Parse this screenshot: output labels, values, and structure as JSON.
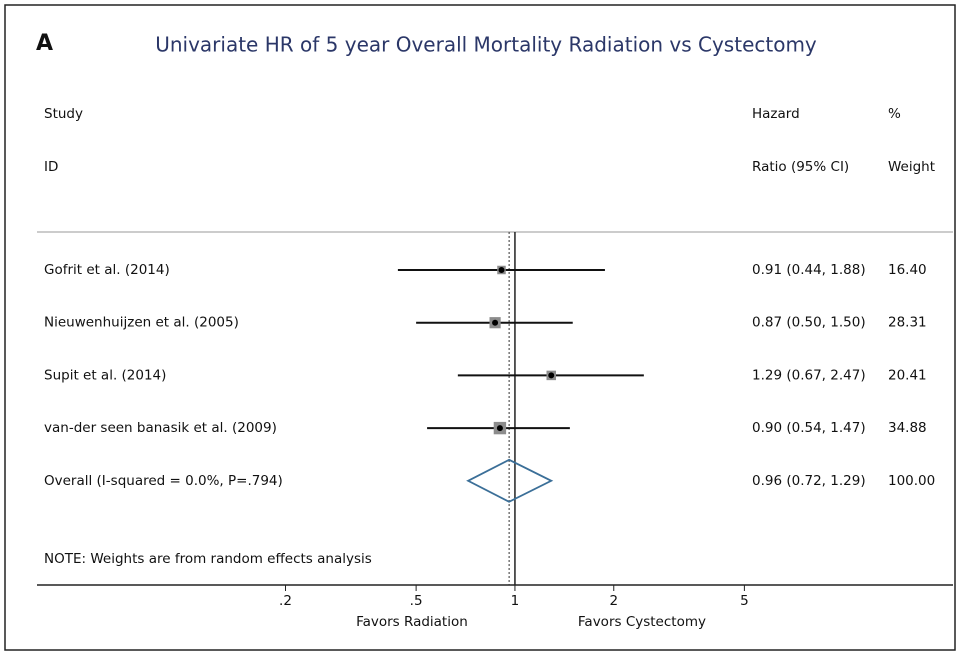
{
  "chart_data": {
    "type": "forest",
    "panel": "A",
    "title": "Univariate HR of 5 year Overall Mortality Radiation vs Cystectomy",
    "study_header": [
      "Study",
      "ID"
    ],
    "ratio_header": [
      "Hazard",
      "Ratio (95% CI)"
    ],
    "weight_header": [
      "%",
      "Weight"
    ],
    "studies": [
      {
        "name": "Gofrit et al. (2014)",
        "hr": 0.91,
        "lo": 0.44,
        "hi": 1.88,
        "ci_label": "0.91 (0.44, 1.88)",
        "weight": 16.4,
        "weight_label": "16.40"
      },
      {
        "name": "Nieuwenhuijzen et al. (2005)",
        "hr": 0.87,
        "lo": 0.5,
        "hi": 1.5,
        "ci_label": "0.87 (0.50, 1.50)",
        "weight": 28.31,
        "weight_label": "28.31"
      },
      {
        "name": "Supit et al. (2014)",
        "hr": 1.29,
        "lo": 0.67,
        "hi": 2.47,
        "ci_label": "1.29 (0.67, 2.47)",
        "weight": 20.41,
        "weight_label": "20.41"
      },
      {
        "name": "van-der seen banasik et al. (2009)",
        "hr": 0.9,
        "lo": 0.54,
        "hi": 1.47,
        "ci_label": "0.90 (0.54, 1.47)",
        "weight": 34.88,
        "weight_label": "34.88"
      }
    ],
    "overall": {
      "name": "Overall (I-squared = 0.0%, P=.794)",
      "hr": 0.96,
      "lo": 0.72,
      "hi": 1.29,
      "ci_label": "0.96 (0.72, 1.29)",
      "weight": 100,
      "weight_label": "100.00"
    },
    "note": "NOTE: Weights are from random effects analysis",
    "x_labels": [
      "Favors Radiation",
      "Favors Cystectomy"
    ],
    "xscale": "log",
    "xlim": [
      0.035,
      21.6
    ],
    "xticks": [
      {
        "value": 0.2,
        "label": ".2"
      },
      {
        "value": 0.5,
        "label": ".5"
      },
      1,
      2,
      5
    ],
    "null_line": 1,
    "colors": {
      "marker": "#8c8c8c",
      "diamond": "#3b6f98",
      "title": "#2b3768"
    }
  }
}
